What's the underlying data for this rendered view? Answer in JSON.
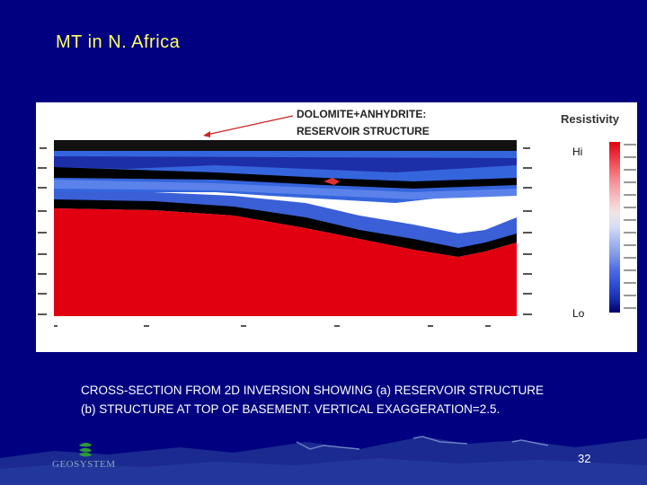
{
  "slide": {
    "title": "MT in N. Africa",
    "page_number": "32"
  },
  "figure": {
    "annotation_line1": "DOLOMITE+ANHYDRITE:",
    "annotation_line2": "RESERVOIR STRUCTURE",
    "legend": {
      "title": "Resistivity",
      "hi_label": "Hi",
      "lo_label": "Lo",
      "colors": [
        "#e00010",
        "#ee3344",
        "#f26a70",
        "#f59aa0",
        "#f7c2c4",
        "#f2e6e6",
        "#d4dcf5",
        "#a8b8ef",
        "#7f96ea",
        "#4f6be2",
        "#2f4fd6",
        "#1a2fb0",
        "#000066"
      ]
    },
    "colors": {
      "conductive_top": "#000000",
      "resistive_shallow": "#2f5fe0",
      "basement": "#e00010",
      "panel": "#ffffff"
    }
  },
  "caption": {
    "line1": "CROSS-SECTION FROM 2D INVERSION SHOWING (a) RESERVOIR STRUCTURE",
    "line2": "(b) STRUCTURE AT TOP OF BASEMENT. VERTICAL EXAGGERATION=2.5."
  },
  "logo": {
    "text": "GEOSYSTEM",
    "icon": "geosystem-logo-icon"
  }
}
